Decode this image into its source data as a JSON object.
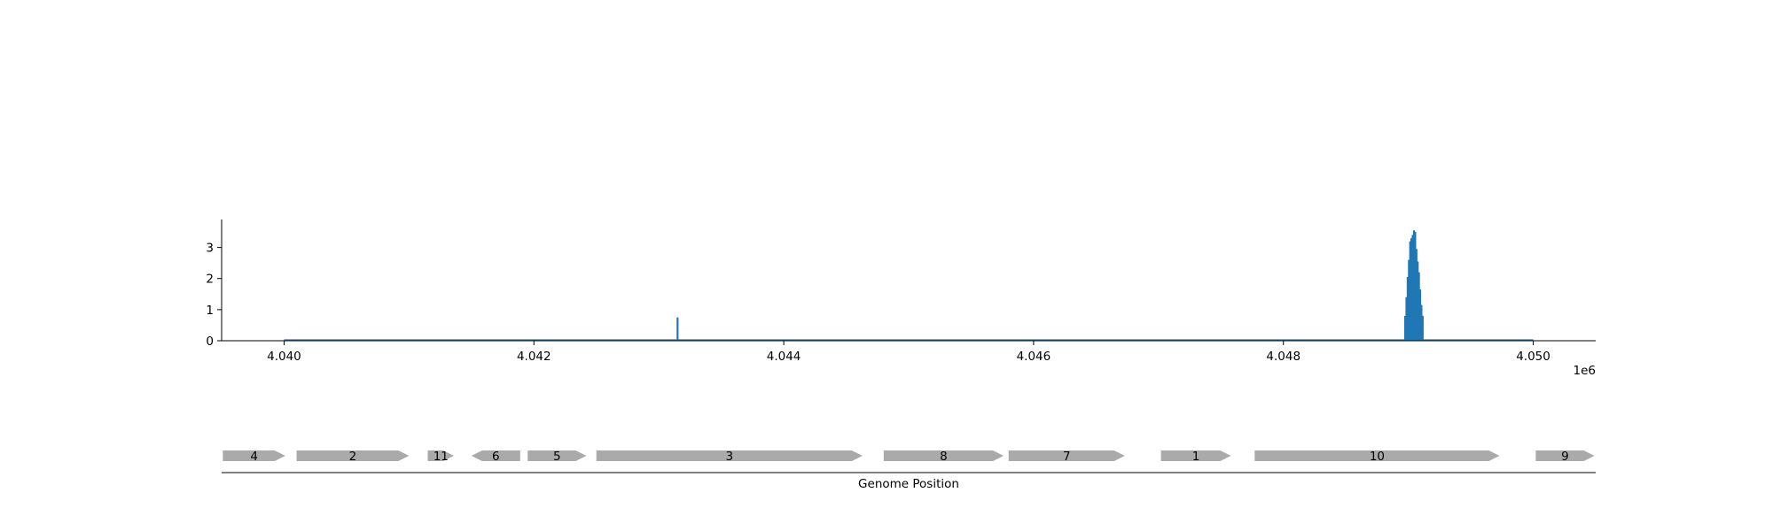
{
  "chart_data": [
    {
      "type": "bar",
      "title": "",
      "xlabel": "",
      "ylabel": "",
      "xlim": [
        4039500,
        4050500
      ],
      "ylim": [
        0,
        3.9
      ],
      "x_ticks": [
        4040000,
        4042000,
        4044000,
        4046000,
        4048000,
        4050000
      ],
      "x_tick_labels": [
        "4.040",
        "4.042",
        "4.044",
        "4.046",
        "4.048",
        "4.050"
      ],
      "x_offset_label": "1e6",
      "y_ticks": [
        0,
        1,
        2,
        3
      ],
      "y_tick_labels": [
        "0",
        "1",
        "2",
        "3"
      ],
      "baseline_range": [
        4040000,
        4050000
      ],
      "color": "#1f77b4",
      "grid": false,
      "bars": [
        {
          "x": 4043150,
          "y": 0.75
        },
        {
          "x": 4048975,
          "y": 0.8
        },
        {
          "x": 4048985,
          "y": 1.4
        },
        {
          "x": 4048995,
          "y": 2.05
        },
        {
          "x": 4049005,
          "y": 2.6
        },
        {
          "x": 4049015,
          "y": 3.2
        },
        {
          "x": 4049025,
          "y": 3.3
        },
        {
          "x": 4049035,
          "y": 3.4
        },
        {
          "x": 4049045,
          "y": 3.55
        },
        {
          "x": 4049055,
          "y": 3.5
        },
        {
          "x": 4049065,
          "y": 2.95
        },
        {
          "x": 4049075,
          "y": 2.55
        },
        {
          "x": 4049085,
          "y": 2.2
        },
        {
          "x": 4049095,
          "y": 1.65
        },
        {
          "x": 4049105,
          "y": 1.15
        },
        {
          "x": 4049115,
          "y": 0.8
        }
      ]
    },
    {
      "type": "gene_track",
      "xlabel": "Genome Position",
      "xlim": [
        4039500,
        4050500
      ],
      "color": "#aaaaaa",
      "genes": [
        {
          "label": "4",
          "start": 4039510,
          "end": 4040010,
          "strand": 1
        },
        {
          "label": "2",
          "start": 4040100,
          "end": 4041000,
          "strand": 1
        },
        {
          "label": "11",
          "start": 4041150,
          "end": 4041360,
          "strand": 1
        },
        {
          "label": "6",
          "start": 4041500,
          "end": 4041890,
          "strand": -1
        },
        {
          "label": "5",
          "start": 4041950,
          "end": 4042420,
          "strand": 1
        },
        {
          "label": "3",
          "start": 4042500,
          "end": 4044630,
          "strand": 1
        },
        {
          "label": "8",
          "start": 4044800,
          "end": 4045760,
          "strand": 1
        },
        {
          "label": "7",
          "start": 4045800,
          "end": 4046730,
          "strand": 1
        },
        {
          "label": "1",
          "start": 4047020,
          "end": 4047580,
          "strand": 1
        },
        {
          "label": "10",
          "start": 4047770,
          "end": 4049730,
          "strand": 1
        },
        {
          "label": "9",
          "start": 4050020,
          "end": 4050490,
          "strand": 1
        }
      ]
    }
  ]
}
